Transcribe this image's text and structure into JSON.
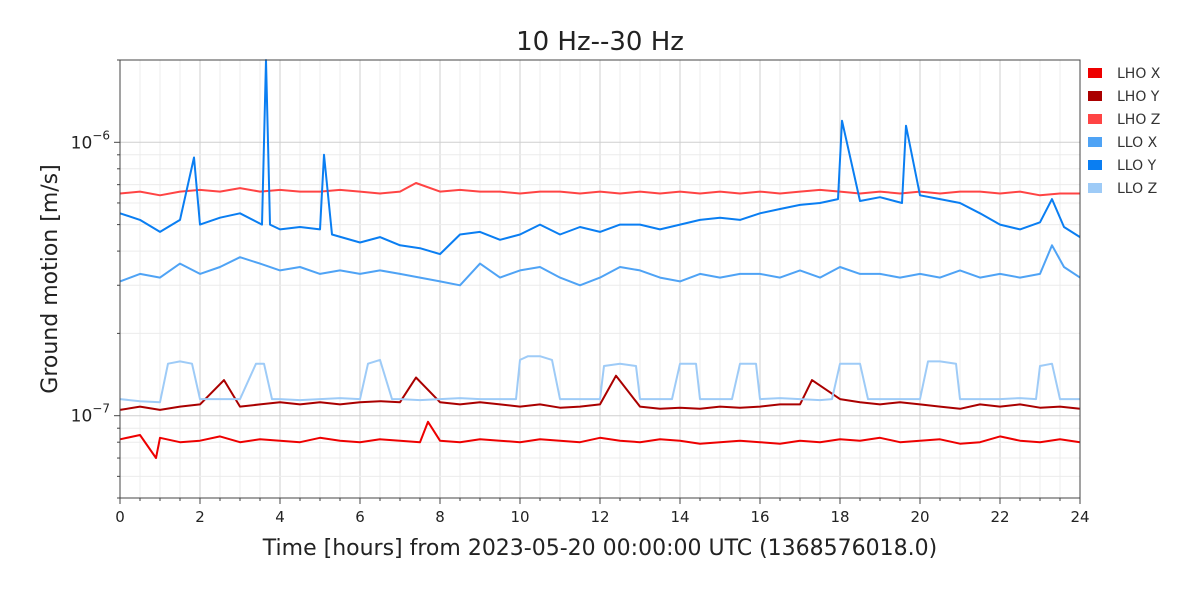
{
  "chart_data": {
    "type": "line",
    "title": "10 Hz--30 Hz",
    "xlabel": "Time [hours] from 2023-05-20 00:00:00 UTC (1368576018.0)",
    "ylabel": "Ground motion [m/s]",
    "xlim": [
      0,
      24
    ],
    "ylim": [
      5e-08,
      2e-06
    ],
    "yscale": "log",
    "grid": true,
    "legend_position": "outside-right-top",
    "x_ticks": [
      0,
      2,
      4,
      6,
      8,
      10,
      12,
      14,
      16,
      18,
      20,
      22,
      24
    ],
    "x_tick_labels": [
      "0",
      "2",
      "4",
      "6",
      "8",
      "10",
      "12",
      "14",
      "16",
      "18",
      "20",
      "22",
      "24"
    ],
    "y_ticks": [
      1e-07,
      1e-06
    ],
    "y_tick_labels": [
      {
        "base": "10",
        "exp": "−7"
      },
      {
        "base": "10",
        "exp": "−6"
      }
    ],
    "series": [
      {
        "name": "LHO X",
        "color": "#ee0000",
        "x": [
          0,
          0.5,
          0.9,
          1,
          1.5,
          2,
          2.5,
          3,
          3.5,
          4,
          4.5,
          5,
          5.5,
          6,
          6.5,
          7,
          7.5,
          7.7,
          8,
          8.5,
          9,
          9.5,
          10,
          10.5,
          11,
          11.5,
          12,
          12.5,
          13,
          13.5,
          14,
          14.5,
          15,
          15.5,
          16,
          16.5,
          17,
          17.5,
          18,
          18.5,
          19,
          19.5,
          20,
          20.5,
          21,
          21.5,
          22,
          22.5,
          23,
          23.5,
          24
        ],
        "y": [
          8.2e-08,
          8.5e-08,
          7e-08,
          8.3e-08,
          8e-08,
          8.1e-08,
          8.4e-08,
          8e-08,
          8.2e-08,
          8.1e-08,
          8e-08,
          8.3e-08,
          8.1e-08,
          8e-08,
          8.2e-08,
          8.1e-08,
          8e-08,
          9.5e-08,
          8.1e-08,
          8e-08,
          8.2e-08,
          8.1e-08,
          8e-08,
          8.2e-08,
          8.1e-08,
          8e-08,
          8.3e-08,
          8.1e-08,
          8e-08,
          8.2e-08,
          8.1e-08,
          7.9e-08,
          8e-08,
          8.1e-08,
          8e-08,
          7.9e-08,
          8.1e-08,
          8e-08,
          8.2e-08,
          8.1e-08,
          8.3e-08,
          8e-08,
          8.1e-08,
          8.2e-08,
          7.9e-08,
          8e-08,
          8.4e-08,
          8.1e-08,
          8e-08,
          8.2e-08,
          8e-08
        ]
      },
      {
        "name": "LHO Y",
        "color": "#aa0000",
        "x": [
          0,
          0.5,
          1,
          1.5,
          2,
          2.6,
          3,
          3.5,
          4,
          4.5,
          5,
          5.5,
          6,
          6.5,
          7,
          7.4,
          8,
          8.5,
          9,
          9.5,
          10,
          10.5,
          11,
          11.5,
          12,
          12.4,
          13,
          13.5,
          14,
          14.5,
          15,
          15.5,
          16,
          16.5,
          17,
          17.3,
          18,
          18.5,
          19,
          19.5,
          20,
          20.5,
          21,
          21.5,
          22,
          22.5,
          23,
          23.5,
          24
        ],
        "y": [
          1.05e-07,
          1.08e-07,
          1.05e-07,
          1.08e-07,
          1.1e-07,
          1.35e-07,
          1.08e-07,
          1.1e-07,
          1.12e-07,
          1.1e-07,
          1.12e-07,
          1.1e-07,
          1.12e-07,
          1.13e-07,
          1.12e-07,
          1.38e-07,
          1.12e-07,
          1.1e-07,
          1.12e-07,
          1.1e-07,
          1.08e-07,
          1.1e-07,
          1.07e-07,
          1.08e-07,
          1.1e-07,
          1.4e-07,
          1.08e-07,
          1.06e-07,
          1.07e-07,
          1.06e-07,
          1.08e-07,
          1.07e-07,
          1.08e-07,
          1.1e-07,
          1.1e-07,
          1.35e-07,
          1.15e-07,
          1.12e-07,
          1.1e-07,
          1.12e-07,
          1.1e-07,
          1.08e-07,
          1.06e-07,
          1.1e-07,
          1.08e-07,
          1.1e-07,
          1.07e-07,
          1.08e-07,
          1.06e-07
        ]
      },
      {
        "name": "LHO Z",
        "color": "#ff4444",
        "x": [
          0,
          0.5,
          1,
          1.5,
          2,
          2.5,
          3,
          3.5,
          4,
          4.5,
          5,
          5.5,
          6,
          6.5,
          7,
          7.4,
          8,
          8.5,
          9,
          9.5,
          10,
          10.5,
          11,
          11.5,
          12,
          12.5,
          13,
          13.5,
          14,
          14.5,
          15,
          15.5,
          16,
          16.5,
          17,
          17.5,
          18,
          18.5,
          19,
          19.5,
          20,
          20.5,
          21,
          21.5,
          22,
          22.5,
          23,
          23.5,
          24
        ],
        "y": [
          6.5e-07,
          6.6e-07,
          6.4e-07,
          6.6e-07,
          6.7e-07,
          6.6e-07,
          6.8e-07,
          6.6e-07,
          6.7e-07,
          6.6e-07,
          6.6e-07,
          6.7e-07,
          6.6e-07,
          6.5e-07,
          6.6e-07,
          7.1e-07,
          6.6e-07,
          6.7e-07,
          6.6e-07,
          6.6e-07,
          6.5e-07,
          6.6e-07,
          6.6e-07,
          6.5e-07,
          6.6e-07,
          6.5e-07,
          6.6e-07,
          6.5e-07,
          6.6e-07,
          6.5e-07,
          6.6e-07,
          6.5e-07,
          6.6e-07,
          6.5e-07,
          6.6e-07,
          6.7e-07,
          6.6e-07,
          6.5e-07,
          6.6e-07,
          6.5e-07,
          6.6e-07,
          6.5e-07,
          6.6e-07,
          6.6e-07,
          6.5e-07,
          6.6e-07,
          6.4e-07,
          6.5e-07,
          6.5e-07
        ]
      },
      {
        "name": "LLO X",
        "color": "#4fa3f5",
        "x": [
          0,
          0.5,
          1,
          1.5,
          2,
          2.5,
          3,
          3.5,
          4,
          4.5,
          5,
          5.5,
          6,
          6.5,
          7,
          7.5,
          8,
          8.5,
          9,
          9.5,
          10,
          10.5,
          11,
          11.5,
          12,
          12.5,
          13,
          13.5,
          14,
          14.5,
          15,
          15.5,
          16,
          16.5,
          17,
          17.5,
          18,
          18.5,
          19,
          19.5,
          20,
          20.5,
          21,
          21.5,
          22,
          22.5,
          23,
          23.3,
          23.6,
          24
        ],
        "y": [
          3.1e-07,
          3.3e-07,
          3.2e-07,
          3.6e-07,
          3.3e-07,
          3.5e-07,
          3.8e-07,
          3.6e-07,
          3.4e-07,
          3.5e-07,
          3.3e-07,
          3.4e-07,
          3.3e-07,
          3.4e-07,
          3.3e-07,
          3.2e-07,
          3.1e-07,
          3e-07,
          3.6e-07,
          3.2e-07,
          3.4e-07,
          3.5e-07,
          3.2e-07,
          3e-07,
          3.2e-07,
          3.5e-07,
          3.4e-07,
          3.2e-07,
          3.1e-07,
          3.3e-07,
          3.2e-07,
          3.3e-07,
          3.3e-07,
          3.2e-07,
          3.4e-07,
          3.2e-07,
          3.5e-07,
          3.3e-07,
          3.3e-07,
          3.2e-07,
          3.3e-07,
          3.2e-07,
          3.4e-07,
          3.2e-07,
          3.3e-07,
          3.2e-07,
          3.3e-07,
          4.2e-07,
          3.5e-07,
          3.2e-07
        ]
      },
      {
        "name": "LLO Y",
        "color": "#0a7ef2",
        "x": [
          0,
          0.5,
          1,
          1.5,
          1.85,
          2,
          2.5,
          3,
          3.55,
          3.65,
          3.75,
          4,
          4.5,
          5,
          5.1,
          5.3,
          6,
          6.5,
          7,
          7.5,
          8,
          8.5,
          9,
          9.5,
          10,
          10.5,
          11,
          11.5,
          12,
          12.5,
          13,
          13.5,
          14,
          14.5,
          15,
          15.5,
          16,
          16.5,
          17,
          17.5,
          17.95,
          18.05,
          18.5,
          19,
          19.55,
          19.65,
          20,
          20.5,
          21,
          21.5,
          22,
          22.5,
          23,
          23.3,
          23.6,
          24
        ],
        "y": [
          5.5e-07,
          5.2e-07,
          4.7e-07,
          5.2e-07,
          8.8e-07,
          5e-07,
          5.3e-07,
          5.5e-07,
          5e-07,
          2e-06,
          5e-07,
          4.8e-07,
          4.9e-07,
          4.8e-07,
          9e-07,
          4.6e-07,
          4.3e-07,
          4.5e-07,
          4.2e-07,
          4.1e-07,
          3.9e-07,
          4.6e-07,
          4.7e-07,
          4.4e-07,
          4.6e-07,
          5e-07,
          4.6e-07,
          4.9e-07,
          4.7e-07,
          5e-07,
          5e-07,
          4.8e-07,
          5e-07,
          5.2e-07,
          5.3e-07,
          5.2e-07,
          5.5e-07,
          5.7e-07,
          5.9e-07,
          6e-07,
          6.2e-07,
          1.2e-06,
          6.1e-07,
          6.3e-07,
          6e-07,
          1.15e-06,
          6.4e-07,
          6.2e-07,
          6e-07,
          5.5e-07,
          5e-07,
          4.8e-07,
          5.1e-07,
          6.2e-07,
          4.9e-07,
          4.5e-07
        ]
      },
      {
        "name": "LLO Z",
        "color": "#9ecbf7",
        "x": [
          0,
          0.5,
          1,
          1.2,
          1.5,
          1.8,
          2,
          2.5,
          3,
          3.4,
          3.6,
          3.8,
          4,
          4.5,
          5,
          5.5,
          6,
          6.2,
          6.5,
          6.8,
          7,
          7.5,
          8,
          8.5,
          9,
          9.9,
          10,
          10.2,
          10.5,
          10.8,
          11,
          11.5,
          12,
          12.1,
          12.5,
          12.9,
          13,
          13.5,
          13.8,
          14,
          14.4,
          14.5,
          15,
          15.3,
          15.5,
          15.9,
          16,
          16.5,
          17,
          17.5,
          17.8,
          18,
          18.5,
          18.7,
          19,
          19.5,
          20,
          20.2,
          20.5,
          20.9,
          21,
          21.5,
          22,
          22.5,
          22.9,
          23,
          23.3,
          23.5,
          24
        ],
        "y": [
          1.15e-07,
          1.13e-07,
          1.12e-07,
          1.55e-07,
          1.58e-07,
          1.55e-07,
          1.15e-07,
          1.15e-07,
          1.15e-07,
          1.55e-07,
          1.55e-07,
          1.15e-07,
          1.15e-07,
          1.14e-07,
          1.15e-07,
          1.16e-07,
          1.15e-07,
          1.55e-07,
          1.6e-07,
          1.15e-07,
          1.15e-07,
          1.14e-07,
          1.15e-07,
          1.16e-07,
          1.15e-07,
          1.15e-07,
          1.6e-07,
          1.65e-07,
          1.65e-07,
          1.6e-07,
          1.15e-07,
          1.15e-07,
          1.15e-07,
          1.52e-07,
          1.55e-07,
          1.52e-07,
          1.15e-07,
          1.15e-07,
          1.15e-07,
          1.55e-07,
          1.55e-07,
          1.15e-07,
          1.15e-07,
          1.15e-07,
          1.55e-07,
          1.55e-07,
          1.15e-07,
          1.16e-07,
          1.15e-07,
          1.14e-07,
          1.15e-07,
          1.55e-07,
          1.55e-07,
          1.15e-07,
          1.15e-07,
          1.15e-07,
          1.15e-07,
          1.58e-07,
          1.58e-07,
          1.55e-07,
          1.15e-07,
          1.15e-07,
          1.15e-07,
          1.16e-07,
          1.15e-07,
          1.52e-07,
          1.55e-07,
          1.15e-07,
          1.15e-07
        ]
      }
    ]
  }
}
